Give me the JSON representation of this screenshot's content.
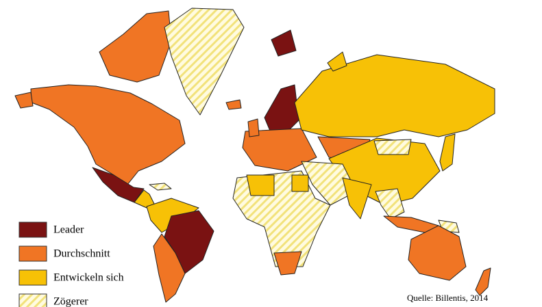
{
  "legend": [
    {
      "label": "Leader",
      "color": "#7a1212"
    },
    {
      "label": "Durchschnitt",
      "color": "#f07524"
    },
    {
      "label": "Entwickeln sich",
      "color": "#f7c106"
    },
    {
      "label": "Zögerer",
      "color": "#fff8c8",
      "pattern": "hatched"
    }
  ],
  "source": "Quelle: Billentis, 2014"
}
